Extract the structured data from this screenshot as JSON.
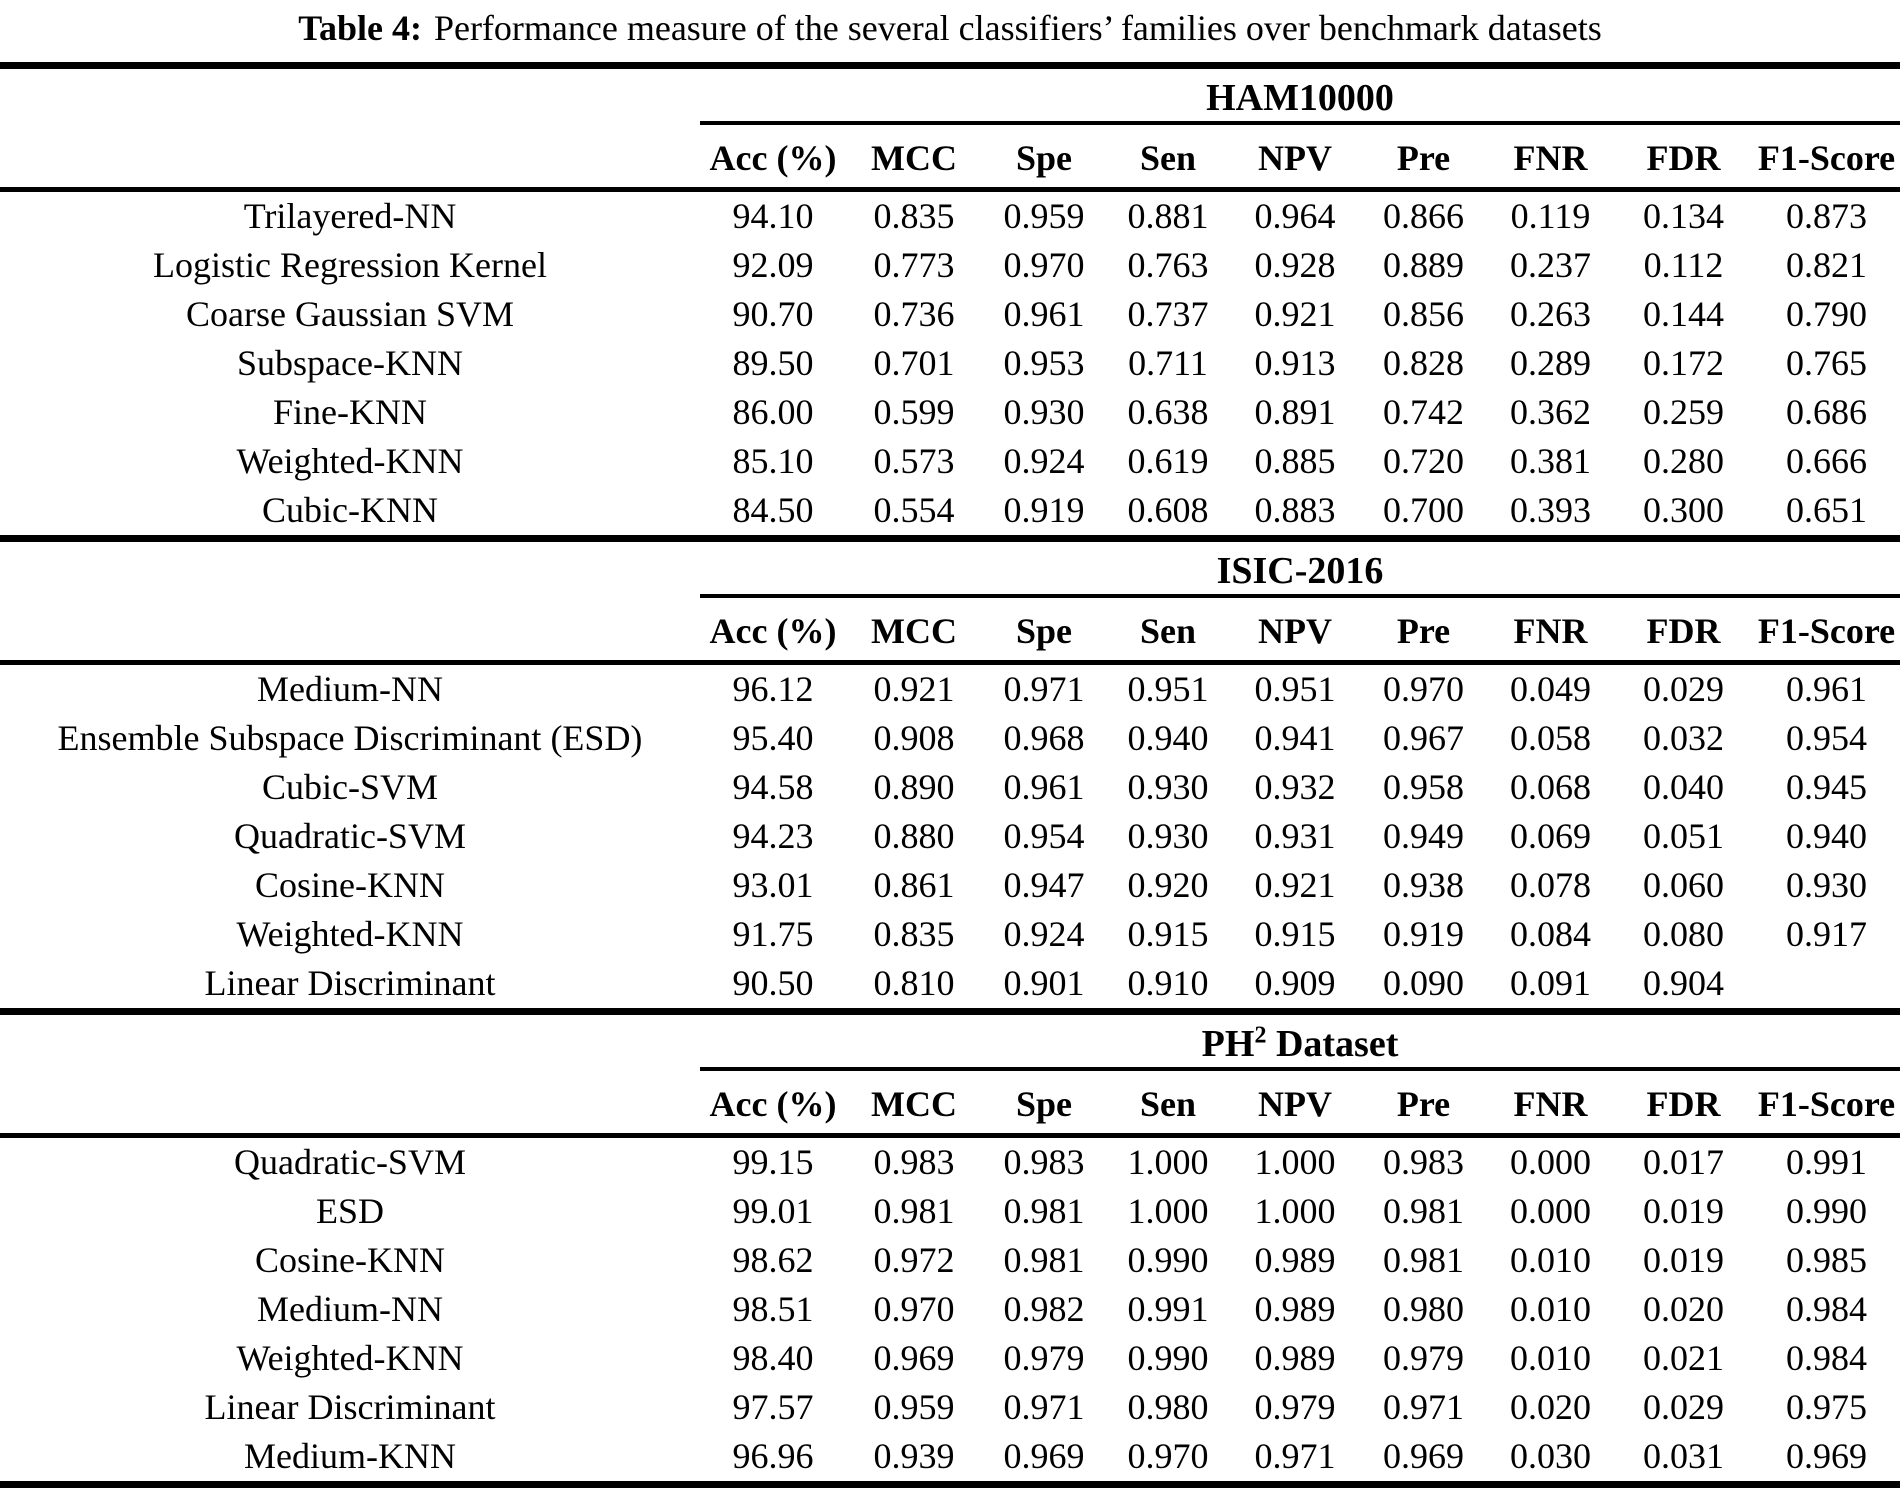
{
  "caption": {
    "label": "Table 4:",
    "text": "Performance measure of the several classifiers’ families over benchmark datasets"
  },
  "columns": [
    "Acc (%)",
    "MCC",
    "Spe",
    "Sen",
    "NPV",
    "Pre",
    "FNR",
    "FDR",
    "F1-Score"
  ],
  "sections": [
    {
      "label": "HAM10000",
      "label_sup": "",
      "label_rest": "",
      "rows": [
        {
          "classifier": "Trilayered-NN",
          "values": [
            "94.10",
            "0.835",
            "0.959",
            "0.881",
            "0.964",
            "0.866",
            "0.119",
            "0.134",
            "0.873"
          ]
        },
        {
          "classifier": "Logistic Regression Kernel",
          "values": [
            "92.09",
            "0.773",
            "0.970",
            "0.763",
            "0.928",
            "0.889",
            "0.237",
            "0.112",
            "0.821"
          ]
        },
        {
          "classifier": "Coarse Gaussian SVM",
          "values": [
            "90.70",
            "0.736",
            "0.961",
            "0.737",
            "0.921",
            "0.856",
            "0.263",
            "0.144",
            "0.790"
          ]
        },
        {
          "classifier": "Subspace-KNN",
          "values": [
            "89.50",
            "0.701",
            "0.953",
            "0.711",
            "0.913",
            "0.828",
            "0.289",
            "0.172",
            "0.765"
          ]
        },
        {
          "classifier": "Fine-KNN",
          "values": [
            "86.00",
            "0.599",
            "0.930",
            "0.638",
            "0.891",
            "0.742",
            "0.362",
            "0.259",
            "0.686"
          ]
        },
        {
          "classifier": "Weighted-KNN",
          "values": [
            "85.10",
            "0.573",
            "0.924",
            "0.619",
            "0.885",
            "0.720",
            "0.381",
            "0.280",
            "0.666"
          ]
        },
        {
          "classifier": "Cubic-KNN",
          "values": [
            "84.50",
            "0.554",
            "0.919",
            "0.608",
            "0.883",
            "0.700",
            "0.393",
            "0.300",
            "0.651"
          ]
        }
      ]
    },
    {
      "label": "ISIC-2016",
      "label_sup": "",
      "label_rest": "",
      "rows": [
        {
          "classifier": "Medium-NN",
          "values": [
            "96.12",
            "0.921",
            "0.971",
            "0.951",
            "0.951",
            "0.970",
            "0.049",
            "0.029",
            "0.961"
          ]
        },
        {
          "classifier": "Ensemble Subspace Discriminant (ESD)",
          "values": [
            "95.40",
            "0.908",
            "0.968",
            "0.940",
            "0.941",
            "0.967",
            "0.058",
            "0.032",
            "0.954"
          ]
        },
        {
          "classifier": "Cubic-SVM",
          "values": [
            "94.58",
            "0.890",
            "0.961",
            "0.930",
            "0.932",
            "0.958",
            "0.068",
            "0.040",
            "0.945"
          ]
        },
        {
          "classifier": "Quadratic-SVM",
          "values": [
            "94.23",
            "0.880",
            "0.954",
            "0.930",
            "0.931",
            "0.949",
            "0.069",
            "0.051",
            "0.940"
          ]
        },
        {
          "classifier": "Cosine-KNN",
          "values": [
            "93.01",
            "0.861",
            "0.947",
            "0.920",
            "0.921",
            "0.938",
            "0.078",
            "0.060",
            "0.930"
          ]
        },
        {
          "classifier": "Weighted-KNN",
          "values": [
            "91.75",
            "0.835",
            "0.924",
            "0.915",
            "0.915",
            "0.919",
            "0.084",
            "0.080",
            "0.917"
          ]
        },
        {
          "classifier": "Linear Discriminant",
          "values": [
            "90.50",
            "0.810",
            "0.901",
            "0.910",
            "0.909",
            "0.090",
            "0.091",
            "0.904",
            ""
          ]
        }
      ]
    },
    {
      "label": "PH",
      "label_sup": "2",
      "label_rest": " Dataset",
      "rows": [
        {
          "classifier": "Quadratic-SVM",
          "values": [
            "99.15",
            "0.983",
            "0.983",
            "1.000",
            "1.000",
            "0.983",
            "0.000",
            "0.017",
            "0.991"
          ]
        },
        {
          "classifier": "ESD",
          "values": [
            "99.01",
            "0.981",
            "0.981",
            "1.000",
            "1.000",
            "0.981",
            "0.000",
            "0.019",
            "0.990"
          ]
        },
        {
          "classifier": "Cosine-KNN",
          "values": [
            "98.62",
            "0.972",
            "0.981",
            "0.990",
            "0.989",
            "0.981",
            "0.010",
            "0.019",
            "0.985"
          ]
        },
        {
          "classifier": "Medium-NN",
          "values": [
            "98.51",
            "0.970",
            "0.982",
            "0.991",
            "0.989",
            "0.980",
            "0.010",
            "0.020",
            "0.984"
          ]
        },
        {
          "classifier": "Weighted-KNN",
          "values": [
            "98.40",
            "0.969",
            "0.979",
            "0.990",
            "0.989",
            "0.979",
            "0.010",
            "0.021",
            "0.984"
          ]
        },
        {
          "classifier": "Linear Discriminant",
          "values": [
            "97.57",
            "0.959",
            "0.971",
            "0.980",
            "0.979",
            "0.971",
            "0.020",
            "0.029",
            "0.975"
          ]
        },
        {
          "classifier": "Medium-KNN",
          "values": [
            "96.96",
            "0.939",
            "0.969",
            "0.970",
            "0.971",
            "0.969",
            "0.030",
            "0.031",
            "0.969"
          ]
        }
      ]
    }
  ]
}
